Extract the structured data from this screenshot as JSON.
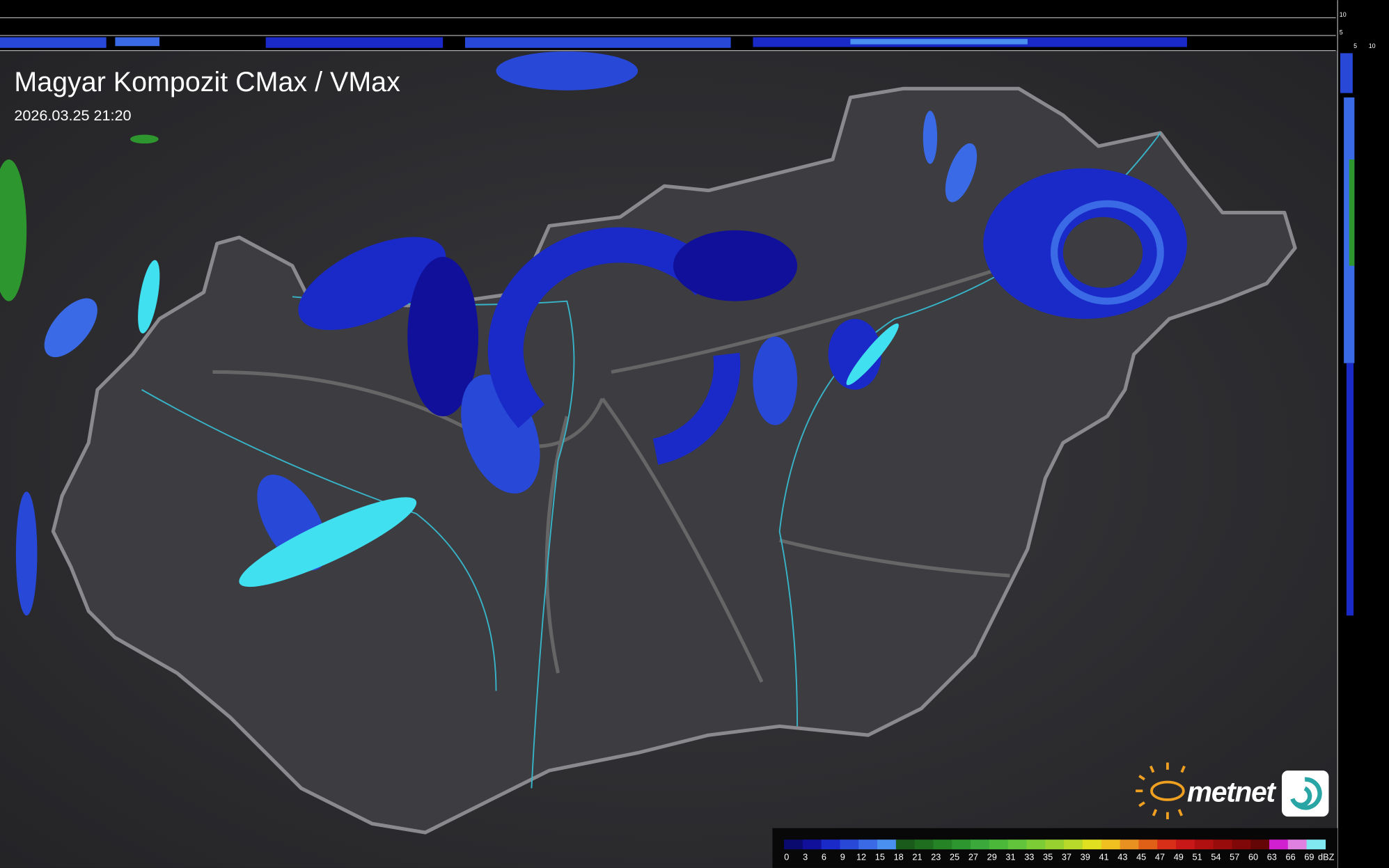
{
  "header": {
    "title": "Magyar Kompozit CMax / VMax",
    "timestamp": "2026.03.25 21:20"
  },
  "profile": {
    "top_ticks": [
      10,
      5
    ],
    "side_ticks": [
      5,
      10
    ]
  },
  "legend": {
    "ticks": [
      0,
      3,
      6,
      9,
      12,
      15,
      18,
      21,
      23,
      25,
      27,
      29,
      31,
      33,
      35,
      37,
      39,
      41,
      43,
      45,
      47,
      49,
      51,
      54,
      57,
      60,
      63,
      66,
      69
    ],
    "colors": [
      "#0a0a6e",
      "#10109a",
      "#1a2ac8",
      "#2848d8",
      "#3a6ae6",
      "#4a90ee",
      "#1a5a1a",
      "#1f6e1f",
      "#258225",
      "#2e962e",
      "#3aa83a",
      "#4cb83a",
      "#62c43a",
      "#7ccc36",
      "#98d030",
      "#b8d82a",
      "#e0e020",
      "#f0c020",
      "#e89020",
      "#e06018",
      "#d83018",
      "#c81818",
      "#b01010",
      "#980c0c",
      "#800808",
      "#640606",
      "#d020d0",
      "#e080e0",
      "#80e8f0"
    ],
    "unit": "dBZ"
  },
  "logo": {
    "text": "metnet"
  }
}
